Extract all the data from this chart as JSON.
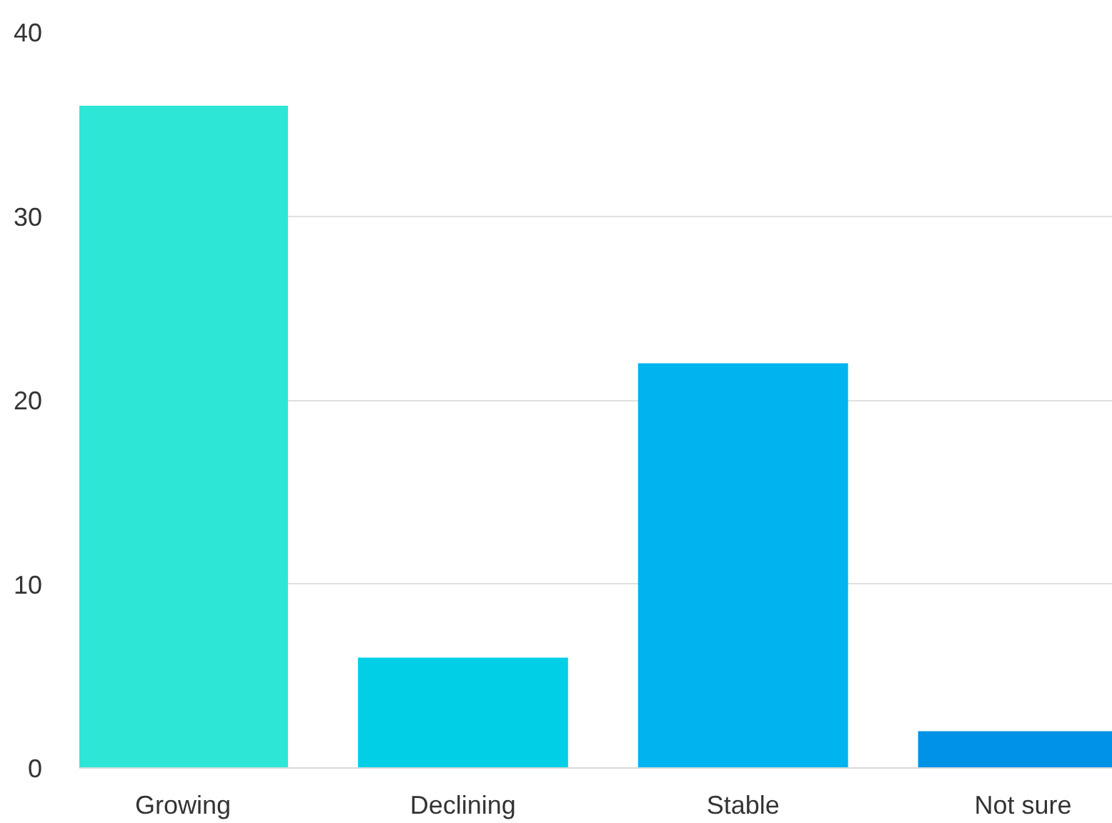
{
  "chart_data": {
    "type": "bar",
    "categories": [
      "Growing",
      "Declining",
      "Stable",
      "Not sure"
    ],
    "values": [
      36,
      6,
      22,
      2
    ],
    "colors": [
      "#2ee6d6",
      "#00cfe6",
      "#00b4f0",
      "#0092e6"
    ],
    "ylim": [
      0,
      40
    ],
    "yticks": [
      0,
      10,
      20,
      30,
      40
    ],
    "grid": "y"
  }
}
